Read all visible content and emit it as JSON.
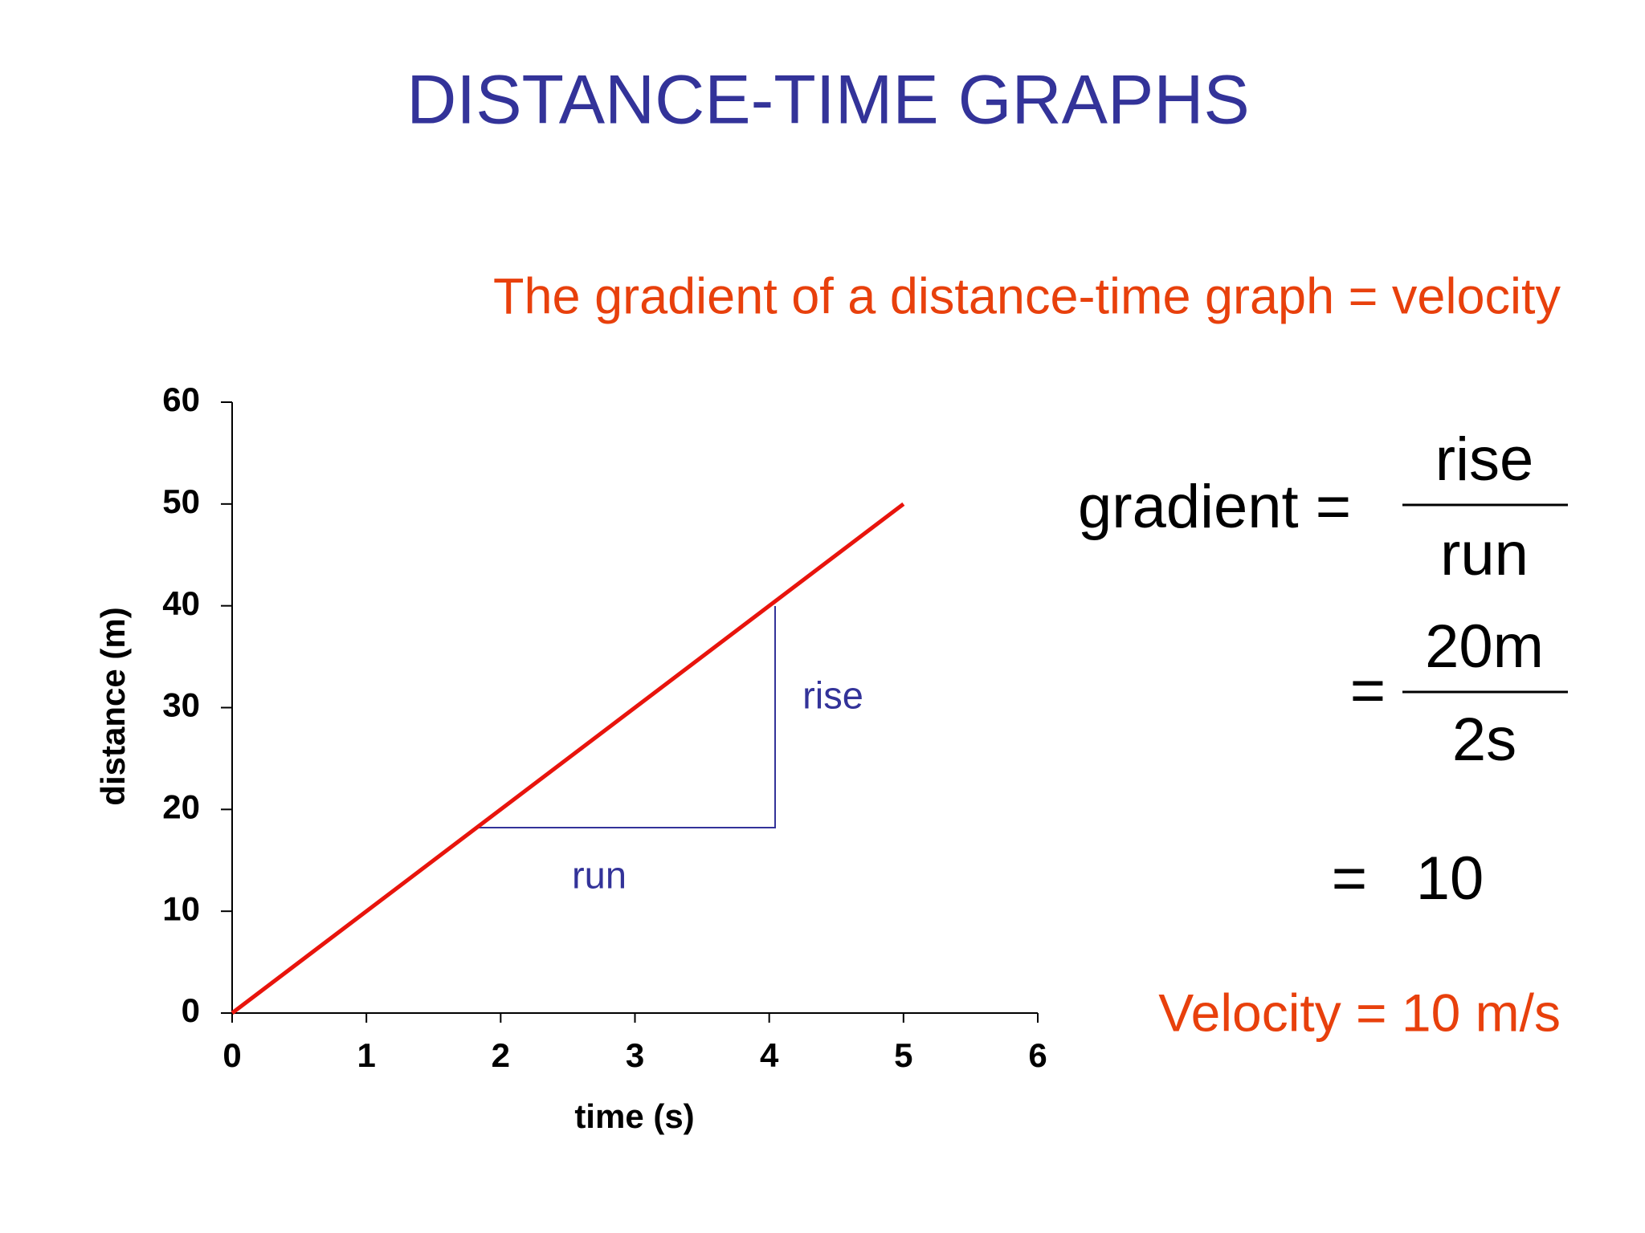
{
  "title": "DISTANCE-TIME GRAPHS",
  "subtitle": "The gradient of a distance-time graph = velocity",
  "chart_data": {
    "type": "line",
    "x": [
      0,
      5
    ],
    "series": [
      {
        "color": "#e8140c",
        "values": [
          0,
          50
        ]
      }
    ],
    "xlim": [
      0,
      6
    ],
    "xticks": [
      0,
      1,
      2,
      3,
      4,
      5,
      6
    ],
    "ylim": [
      0,
      60
    ],
    "yticks": [
      0,
      10,
      20,
      30,
      40,
      50,
      60
    ],
    "xlabel": "time (s)",
    "ylabel": "distance (m)",
    "annotations": [
      "rise",
      "run"
    ]
  },
  "equation": {
    "lhs": "gradient =",
    "numerator": "rise",
    "denominator": "run",
    "eq2": "=",
    "numerator2": "20m",
    "denominator2": "2s",
    "eq3": "=",
    "result": "10",
    "conclusion": "Velocity = 10 m/s"
  }
}
